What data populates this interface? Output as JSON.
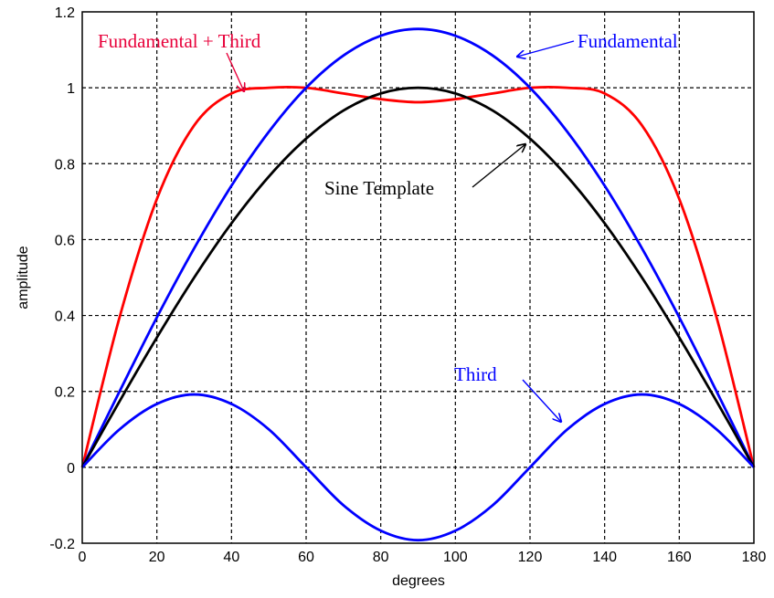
{
  "chart_data": {
    "type": "line",
    "title": "",
    "xlabel": "degrees",
    "ylabel": "amplitude",
    "xlim": [
      0,
      180
    ],
    "ylim": [
      -0.2,
      1.2
    ],
    "xticks": [
      "0",
      "20",
      "40",
      "60",
      "80",
      "100",
      "120",
      "140",
      "160",
      "180"
    ],
    "yticks": [
      "-0.2",
      "0",
      "0.2",
      "0.4",
      "0.6",
      "0.8",
      "1",
      "1.2"
    ],
    "grid": true,
    "x": [
      0,
      10,
      20,
      30,
      40,
      50,
      60,
      70,
      80,
      90,
      100,
      110,
      120,
      130,
      140,
      150,
      160,
      170,
      180
    ],
    "series": [
      {
        "name": "Fundamental + Third",
        "color": "#ff0000",
        "values": [
          0,
          0.395,
          0.707,
          0.901,
          0.985,
          1.0,
          1.0,
          0.985,
          0.97,
          0.962,
          0.97,
          0.985,
          1.0,
          1.0,
          0.985,
          0.901,
          0.707,
          0.395,
          0
        ]
      },
      {
        "name": "Fundamental",
        "color": "#0000ff",
        "values": [
          0,
          0.2,
          0.395,
          0.577,
          0.742,
          0.884,
          1.0,
          1.085,
          1.137,
          1.155,
          1.137,
          1.085,
          1.0,
          0.884,
          0.742,
          0.577,
          0.395,
          0.2,
          0
        ]
      },
      {
        "name": "Sine Template",
        "color": "#000000",
        "values": [
          0,
          0.174,
          0.342,
          0.5,
          0.643,
          0.766,
          0.866,
          0.94,
          0.985,
          1.0,
          0.985,
          0.94,
          0.866,
          0.766,
          0.643,
          0.5,
          0.342,
          0.174,
          0
        ]
      },
      {
        "name": "Third",
        "color": "#0000ff",
        "values": [
          0,
          0.1,
          0.167,
          0.192,
          0.167,
          0.1,
          0,
          -0.1,
          -0.167,
          -0.192,
          -0.167,
          -0.1,
          0,
          0.1,
          0.167,
          0.192,
          0.167,
          0.1,
          0
        ]
      }
    ],
    "annotations": [
      {
        "text": "Fundamental + Third",
        "color": "#e8003a",
        "arrow_to": [
          44,
          0.97
        ]
      },
      {
        "text": "Fundamental",
        "color": "#0000ff",
        "arrow_to": [
          115,
          1.085
        ]
      },
      {
        "text": "Sine Template",
        "color": "#000000",
        "arrow_to": [
          110,
          0.855
        ]
      },
      {
        "text": "Third",
        "color": "#0000ff",
        "arrow_to": [
          129,
          0.105
        ]
      }
    ]
  }
}
